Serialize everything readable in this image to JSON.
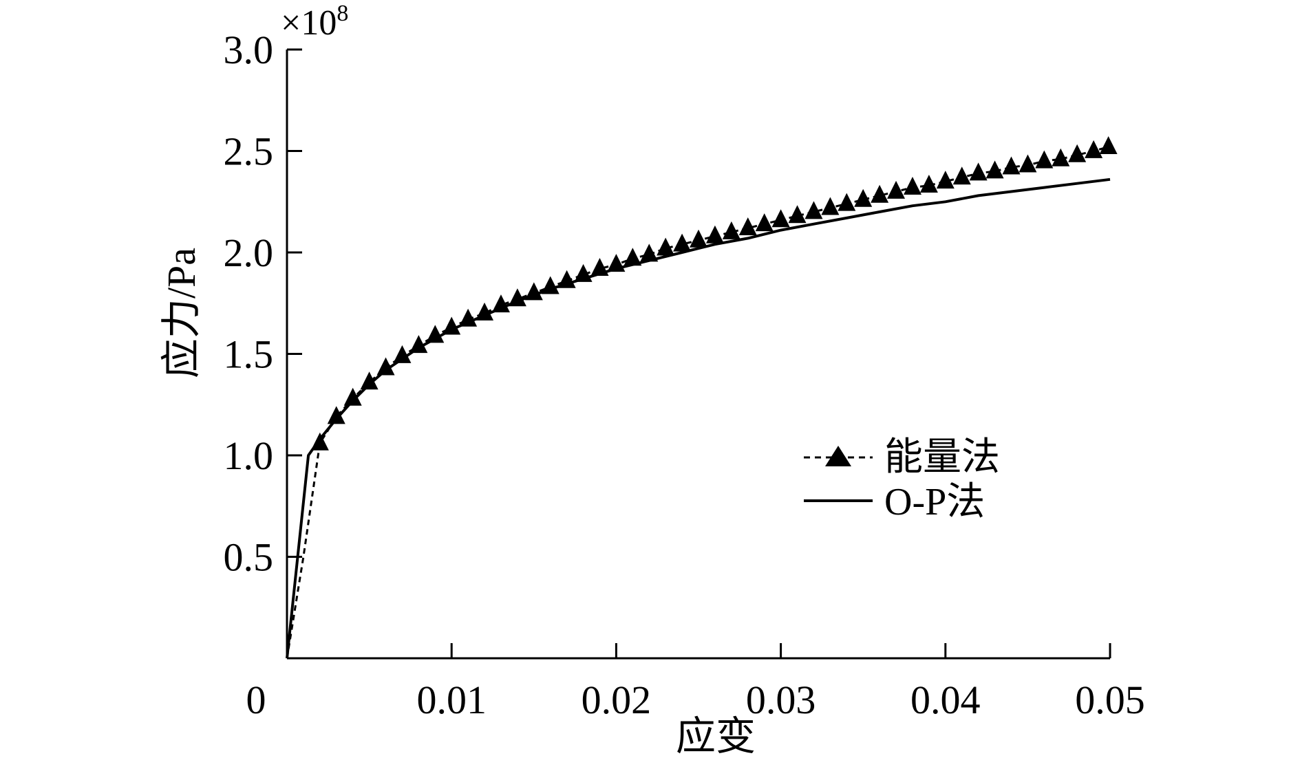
{
  "chart_data": {
    "type": "line",
    "xlabel": "应变",
    "ylabel": "应力/Pa",
    "xlim": [
      0,
      0.05
    ],
    "ylim": [
      0,
      3.0
    ],
    "y_multiplier": {
      "base": "×10",
      "exponent": "8"
    },
    "x_ticks": [
      {
        "value": 0,
        "label": "0"
      },
      {
        "value": 0.01,
        "label": "0.01"
      },
      {
        "value": 0.02,
        "label": "0.02"
      },
      {
        "value": 0.03,
        "label": "0.03"
      },
      {
        "value": 0.04,
        "label": "0.04"
      },
      {
        "value": 0.05,
        "label": "0.05"
      }
    ],
    "y_ticks": [
      {
        "value": 0.5,
        "label": "0.5"
      },
      {
        "value": 1.0,
        "label": "1.0"
      },
      {
        "value": 1.5,
        "label": "1.5"
      },
      {
        "value": 2.0,
        "label": "2.0"
      },
      {
        "value": 2.5,
        "label": "2.5"
      },
      {
        "value": 3.0,
        "label": "3.0"
      }
    ],
    "grid": false,
    "legend_position": "center-right",
    "series": [
      {
        "name": "能量法",
        "style": "dashed-line-triangle-markers",
        "color": "#000000",
        "x": [
          0,
          0.001,
          0.002,
          0.003,
          0.004,
          0.005,
          0.006,
          0.007,
          0.008,
          0.009,
          0.01,
          0.011,
          0.012,
          0.013,
          0.014,
          0.015,
          0.016,
          0.017,
          0.018,
          0.019,
          0.02,
          0.021,
          0.022,
          0.023,
          0.024,
          0.025,
          0.026,
          0.027,
          0.028,
          0.029,
          0.03,
          0.031,
          0.032,
          0.033,
          0.034,
          0.035,
          0.036,
          0.037,
          0.038,
          0.039,
          0.04,
          0.041,
          0.042,
          0.043,
          0.044,
          0.045,
          0.046,
          0.047,
          0.048,
          0.049,
          0.0499
        ],
        "y": [
          0,
          0.5,
          1.06,
          1.19,
          1.28,
          1.36,
          1.43,
          1.49,
          1.54,
          1.59,
          1.63,
          1.67,
          1.7,
          1.74,
          1.77,
          1.8,
          1.83,
          1.86,
          1.89,
          1.92,
          1.94,
          1.97,
          1.99,
          2.02,
          2.04,
          2.06,
          2.08,
          2.1,
          2.12,
          2.14,
          2.16,
          2.18,
          2.2,
          2.22,
          2.24,
          2.26,
          2.28,
          2.3,
          2.32,
          2.33,
          2.35,
          2.37,
          2.39,
          2.4,
          2.42,
          2.43,
          2.45,
          2.46,
          2.48,
          2.5,
          2.52
        ]
      },
      {
        "name": "O-P法",
        "style": "solid-line",
        "color": "#000000",
        "x": [
          0,
          0.0013,
          0.002,
          0.003,
          0.004,
          0.005,
          0.006,
          0.008,
          0.01,
          0.012,
          0.014,
          0.016,
          0.018,
          0.02,
          0.022,
          0.024,
          0.026,
          0.028,
          0.03,
          0.032,
          0.034,
          0.036,
          0.038,
          0.04,
          0.042,
          0.044,
          0.046,
          0.048,
          0.05
        ],
        "y": [
          0,
          1.0,
          1.08,
          1.18,
          1.27,
          1.35,
          1.42,
          1.53,
          1.62,
          1.69,
          1.76,
          1.82,
          1.87,
          1.92,
          1.96,
          2.0,
          2.04,
          2.07,
          2.11,
          2.14,
          2.17,
          2.2,
          2.23,
          2.25,
          2.28,
          2.3,
          2.32,
          2.34,
          2.36
        ]
      }
    ]
  }
}
